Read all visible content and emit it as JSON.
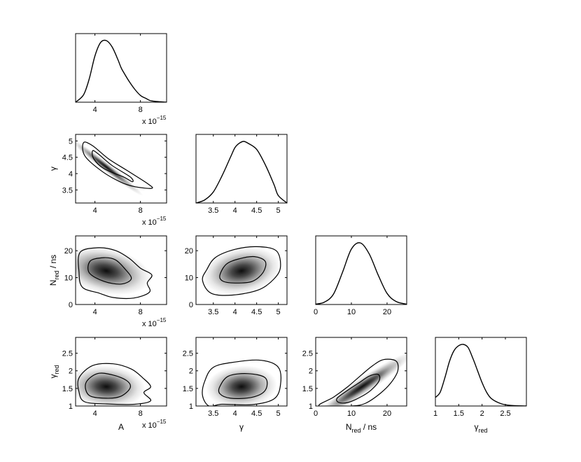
{
  "figure": {
    "type": "corner-plot",
    "background": "#ffffff",
    "density_color": "#000000"
  },
  "params": [
    {
      "id": "A",
      "label": "A",
      "label_sub": "",
      "label_suffix": "",
      "range": [
        2.3,
        10.3
      ],
      "ticks": [
        4,
        8
      ],
      "tick_labels": [
        "4",
        "8"
      ],
      "offset_label": "x 10",
      "offset_exp": "−15"
    },
    {
      "id": "gamma",
      "label": "γ",
      "label_sub": "",
      "label_suffix": "",
      "range": [
        3.1,
        5.2
      ],
      "ticks": [
        3.5,
        4,
        4.5,
        5
      ],
      "tick_labels": [
        "3.5",
        "4",
        "4.5",
        "5"
      ],
      "offset_label": "",
      "offset_exp": ""
    },
    {
      "id": "N_red",
      "label": "N",
      "label_sub": "red",
      "label_suffix": " / ns",
      "range": [
        0,
        25.5
      ],
      "ticks": [
        0,
        10,
        20
      ],
      "tick_labels": [
        "0",
        "10",
        "20"
      ],
      "offset_label": "",
      "offset_exp": ""
    },
    {
      "id": "gamma_red",
      "label": "γ",
      "label_sub": "red",
      "label_suffix": "",
      "range": [
        1,
        2.95
      ],
      "ticks": [
        1,
        1.5,
        2,
        2.5
      ],
      "tick_labels": [
        "1",
        "1.5",
        "2",
        "2.5"
      ],
      "offset_label": "",
      "offset_exp": ""
    }
  ],
  "chart_data": [
    {
      "type": "line",
      "panel": "A-marginal",
      "xlabel": "",
      "ylabel": "",
      "x": [
        2.3,
        3.0,
        3.5,
        4.0,
        4.5,
        5.0,
        5.5,
        6.0,
        6.3,
        6.6,
        7.0,
        7.5,
        8.0,
        8.5,
        9.0,
        10.3
      ],
      "y": [
        0.0,
        0.12,
        0.38,
        0.75,
        0.97,
        1.0,
        0.9,
        0.7,
        0.56,
        0.46,
        0.34,
        0.21,
        0.11,
        0.06,
        0.02,
        0.0
      ]
    },
    {
      "type": "line",
      "panel": "gamma-marginal",
      "xlabel": "",
      "ylabel": "",
      "x": [
        3.1,
        3.3,
        3.5,
        3.7,
        3.9,
        4.0,
        4.1,
        4.2,
        4.3,
        4.5,
        4.7,
        4.9,
        5.0,
        5.2
      ],
      "y": [
        0.0,
        0.05,
        0.18,
        0.44,
        0.75,
        0.9,
        0.97,
        1.0,
        0.97,
        0.87,
        0.62,
        0.3,
        0.12,
        0.0
      ]
    },
    {
      "type": "line",
      "panel": "N_red-marginal",
      "xlabel": "",
      "ylabel": "",
      "x": [
        0,
        2.5,
        5,
        7.5,
        10,
        12.5,
        15,
        17.5,
        20,
        22.5,
        25.5
      ],
      "y": [
        0.005,
        0.04,
        0.17,
        0.52,
        0.9,
        1.0,
        0.82,
        0.48,
        0.18,
        0.05,
        0.005
      ]
    },
    {
      "type": "line",
      "panel": "gamma_red-marginal",
      "xlabel": "",
      "ylabel": "",
      "x": [
        1.0,
        1.1,
        1.2,
        1.3,
        1.4,
        1.5,
        1.6,
        1.7,
        1.8,
        1.9,
        2.0,
        2.1,
        2.2,
        2.4,
        2.6,
        2.95
      ],
      "y": [
        0.14,
        0.22,
        0.45,
        0.72,
        0.9,
        0.98,
        1.0,
        0.95,
        0.78,
        0.58,
        0.38,
        0.22,
        0.12,
        0.04,
        0.01,
        0.0
      ]
    },
    {
      "type": "heatmap",
      "panel": "gamma-vs-A",
      "x_param": "A",
      "y_param": "gamma",
      "peak": [
        5.0,
        4.2
      ],
      "spread": [
        1.0,
        0.18
      ],
      "correlation": -0.95,
      "contours": [
        {
          "level": "inner",
          "points": [
            [
              3.8,
              4.7
            ],
            [
              3.9,
              4.45
            ],
            [
              4.8,
              4.15
            ],
            [
              6.5,
              3.9
            ],
            [
              7.3,
              3.75
            ],
            [
              7.1,
              3.9
            ],
            [
              5.5,
              4.25
            ],
            [
              4.3,
              4.6
            ]
          ]
        },
        {
          "level": "outer",
          "points": [
            [
              3.0,
              4.95
            ],
            [
              3.1,
              4.55
            ],
            [
              4.5,
              4.1
            ],
            [
              6.2,
              3.75
            ],
            [
              7.5,
              3.6
            ],
            [
              9.0,
              3.55
            ],
            [
              8.6,
              3.7
            ],
            [
              6.8,
              4.1
            ],
            [
              5.2,
              4.45
            ],
            [
              3.8,
              4.85
            ]
          ]
        }
      ]
    },
    {
      "type": "heatmap",
      "panel": "N_red-vs-A",
      "x_param": "A",
      "y_param": "N_red",
      "peak": [
        5.0,
        12.5
      ],
      "spread": [
        1.3,
        4.2
      ],
      "correlation": -0.3,
      "contours": [
        {
          "level": "inner",
          "points": [
            [
              3.6,
              16.2
            ],
            [
              4.8,
              17.4
            ],
            [
              5.8,
              16.6
            ],
            [
              6.6,
              13.4
            ],
            [
              7.2,
              9.6
            ],
            [
              6.3,
              7.6
            ],
            [
              4.8,
              8.6
            ],
            [
              3.5,
              11.8
            ]
          ]
        },
        {
          "level": "outer",
          "points": [
            [
              2.7,
              19.4
            ],
            [
              4.3,
              21.1
            ],
            [
              5.8,
              20.1
            ],
            [
              7.0,
              17.2
            ],
            [
              8.0,
              13.5
            ],
            [
              9.0,
              11.0
            ],
            [
              8.6,
              8.0
            ],
            [
              8.8,
              4.6
            ],
            [
              7.4,
              2.4
            ],
            [
              5.6,
              2.6
            ],
            [
              4.4,
              4.2
            ],
            [
              2.9,
              6.4
            ],
            [
              2.6,
              12.0
            ]
          ]
        }
      ]
    },
    {
      "type": "heatmap",
      "panel": "N_red-vs-gamma",
      "x_param": "gamma",
      "y_param": "N_red",
      "peak": [
        4.15,
        12.5
      ],
      "spread": [
        0.3,
        4.2
      ],
      "correlation": 0.3,
      "contours": [
        {
          "level": "inner",
          "points": [
            [
              3.65,
              10.8
            ],
            [
              3.8,
              15.0
            ],
            [
              4.1,
              17.0
            ],
            [
              4.45,
              17.8
            ],
            [
              4.7,
              16.0
            ],
            [
              4.65,
              12.0
            ],
            [
              4.4,
              8.6
            ],
            [
              4.0,
              8.0
            ],
            [
              3.72,
              8.7
            ]
          ]
        },
        {
          "level": "outer",
          "points": [
            [
              3.35,
              13.0
            ],
            [
              3.55,
              17.5
            ],
            [
              4.0,
              20.5
            ],
            [
              4.5,
              21.5
            ],
            [
              4.95,
              20.0
            ],
            [
              5.05,
              14.0
            ],
            [
              4.9,
              9.5
            ],
            [
              4.55,
              5.5
            ],
            [
              3.95,
              3.5
            ],
            [
              3.45,
              4.2
            ],
            [
              3.25,
              9.0
            ]
          ]
        }
      ]
    },
    {
      "type": "heatmap",
      "panel": "gamma_red-vs-A",
      "x_param": "A",
      "y_param": "gamma_red",
      "peak": [
        5.0,
        1.55
      ],
      "spread": [
        1.25,
        0.25
      ],
      "correlation": -0.1,
      "contours": [
        {
          "level": "inner",
          "points": [
            [
              3.2,
              1.65
            ],
            [
              4.2,
              1.92
            ],
            [
              5.6,
              1.88
            ],
            [
              6.8,
              1.72
            ],
            [
              7.1,
              1.52
            ],
            [
              6.3,
              1.28
            ],
            [
              5.0,
              1.22
            ],
            [
              3.5,
              1.3
            ]
          ]
        },
        {
          "level": "outer",
          "points": [
            [
              2.6,
              1.8
            ],
            [
              3.8,
              2.15
            ],
            [
              5.6,
              2.2
            ],
            [
              7.2,
              2.05
            ],
            [
              8.2,
              1.8
            ],
            [
              8.9,
              1.55
            ],
            [
              8.3,
              1.38
            ],
            [
              8.9,
              1.15
            ],
            [
              7.5,
              1.05
            ],
            [
              5.0,
              1.06
            ],
            [
              3.1,
              1.12
            ],
            [
              2.6,
              1.4
            ]
          ]
        }
      ]
    },
    {
      "type": "heatmap",
      "panel": "gamma_red-vs-gamma",
      "x_param": "gamma",
      "y_param": "gamma_red",
      "peak": [
        4.15,
        1.55
      ],
      "spread": [
        0.3,
        0.25
      ],
      "correlation": 0.1,
      "contours": [
        {
          "level": "inner",
          "points": [
            [
              3.65,
              1.55
            ],
            [
              3.85,
              1.85
            ],
            [
              4.3,
              1.92
            ],
            [
              4.7,
              1.8
            ],
            [
              4.7,
              1.45
            ],
            [
              4.4,
              1.25
            ],
            [
              3.9,
              1.22
            ],
            [
              3.65,
              1.35
            ]
          ]
        },
        {
          "level": "outer",
          "points": [
            [
              3.3,
              1.7
            ],
            [
              3.5,
              2.1
            ],
            [
              4.0,
              2.25
            ],
            [
              4.6,
              2.3
            ],
            [
              5.0,
              2.1
            ],
            [
              5.05,
              1.6
            ],
            [
              4.9,
              1.2
            ],
            [
              4.4,
              1.04
            ],
            [
              3.7,
              1.05
            ],
            [
              3.4,
              1.0
            ],
            [
              3.25,
              1.3
            ]
          ]
        }
      ]
    },
    {
      "type": "heatmap",
      "panel": "gamma_red-vs-N_red",
      "x_param": "N_red",
      "y_param": "gamma_red",
      "peak": [
        13.0,
        1.55
      ],
      "spread": [
        4.3,
        0.25
      ],
      "correlation": 0.85,
      "contours": [
        {
          "level": "inner",
          "points": [
            [
              6.0,
              1.22
            ],
            [
              9.0,
              1.45
            ],
            [
              12.0,
              1.65
            ],
            [
              15.0,
              1.85
            ],
            [
              17.5,
              1.9
            ],
            [
              17.8,
              1.72
            ],
            [
              15.5,
              1.45
            ],
            [
              12.5,
              1.25
            ],
            [
              9.0,
              1.1
            ],
            [
              6.5,
              1.1
            ]
          ]
        },
        {
          "level": "outer",
          "points": [
            [
              1.0,
              1.0
            ],
            [
              5.0,
              1.25
            ],
            [
              9.0,
              1.55
            ],
            [
              13.0,
              1.9
            ],
            [
              16.0,
              2.15
            ],
            [
              19.0,
              2.32
            ],
            [
              22.5,
              2.28
            ],
            [
              23.0,
              2.0
            ],
            [
              21.0,
              1.65
            ],
            [
              18.0,
              1.35
            ],
            [
              14.0,
              1.08
            ],
            [
              10.0,
              1.0
            ]
          ]
        }
      ]
    }
  ]
}
